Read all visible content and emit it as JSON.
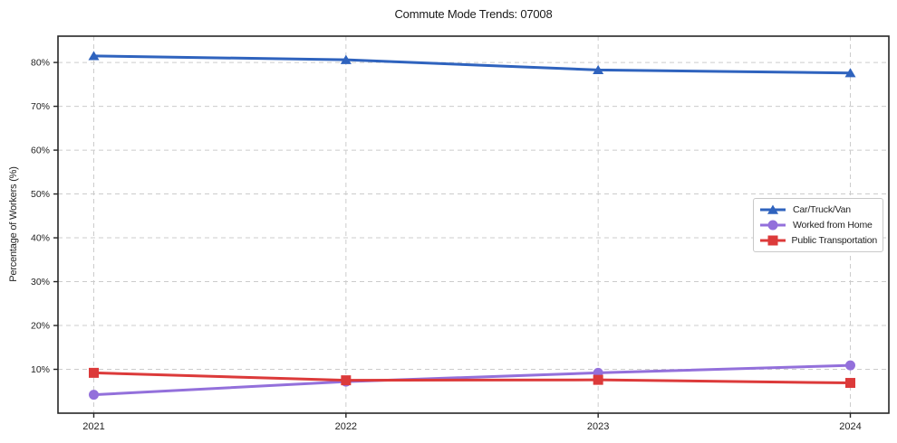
{
  "chart_data": {
    "type": "line",
    "title": "Commute Mode Trends: 07008",
    "xlabel": "",
    "ylabel": "Percentage of Workers (%)",
    "x": [
      "2021",
      "2022",
      "2023",
      "2024"
    ],
    "ylim": [
      0,
      86
    ],
    "yticks": [
      10,
      20,
      30,
      40,
      50,
      60,
      70,
      80
    ],
    "ytick_suffix": "%",
    "grid": "dashed, both axes",
    "legend_position": "center-right",
    "colors": {
      "background": "#ffffff",
      "spine": "#262626",
      "grid": "#cccccc",
      "tick_text": "#1f1f1f"
    },
    "series": [
      {
        "name": "Car/Truck/Van",
        "color": "#2f63be",
        "marker": "triangle",
        "values": [
          81.5,
          80.6,
          78.3,
          77.6
        ]
      },
      {
        "name": "Worked from Home",
        "color": "#9370db",
        "marker": "circle",
        "values": [
          4.2,
          7.2,
          9.2,
          10.9
        ]
      },
      {
        "name": "Public Transportation",
        "color": "#dc3a3a",
        "marker": "square",
        "values": [
          9.2,
          7.5,
          7.6,
          6.9
        ]
      }
    ]
  }
}
